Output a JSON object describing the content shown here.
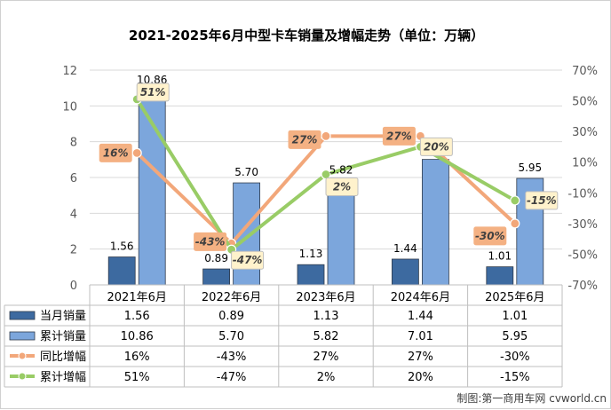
{
  "chart_data": {
    "type": "bar",
    "title": "2021-2025年6月中型卡车销量及增幅走势（单位：万辆）",
    "categories": [
      "2021年6月",
      "2022年6月",
      "2023年6月",
      "2024年6月",
      "2025年6月"
    ],
    "ylim": [
      0,
      12
    ],
    "y_ticks": [
      "0",
      "2",
      "4",
      "6",
      "8",
      "10",
      "12"
    ],
    "y2lim": [
      -70,
      70
    ],
    "y2_ticks": [
      "-70%",
      "-50%",
      "-30%",
      "-10%",
      "10%",
      "30%",
      "50%",
      "70%"
    ],
    "grid": true,
    "legend": "table-below",
    "series": [
      {
        "name": "当月销量",
        "type": "bar",
        "color": "#3d6aa0",
        "values": [
          1.56,
          0.89,
          1.13,
          1.44,
          1.01
        ],
        "labels": [
          "1.56",
          "0.89",
          "1.13",
          "1.44",
          "1.01"
        ]
      },
      {
        "name": "累计销量",
        "type": "bar",
        "color": "#7ca6dc",
        "values": [
          10.86,
          5.7,
          5.82,
          7.01,
          5.95
        ],
        "labels": [
          "10.86",
          "5.70",
          "5.82",
          "7.01",
          "5.95"
        ]
      },
      {
        "name": "同比增幅",
        "type": "line",
        "axis": "right",
        "color": "#f2a77a",
        "values": [
          16,
          -43,
          27,
          27,
          -30
        ],
        "labels": [
          "16%",
          "-43%",
          "27%",
          "27%",
          "-30%"
        ]
      },
      {
        "name": "累计增幅",
        "type": "line",
        "axis": "right",
        "color": "#99cc66",
        "values": [
          51,
          -47,
          2,
          20,
          -15
        ],
        "labels": [
          "51%",
          "-47%",
          "2%",
          "20%",
          "-15%"
        ]
      }
    ]
  },
  "credit": "制图:第一商用车网 cvworld.cn"
}
